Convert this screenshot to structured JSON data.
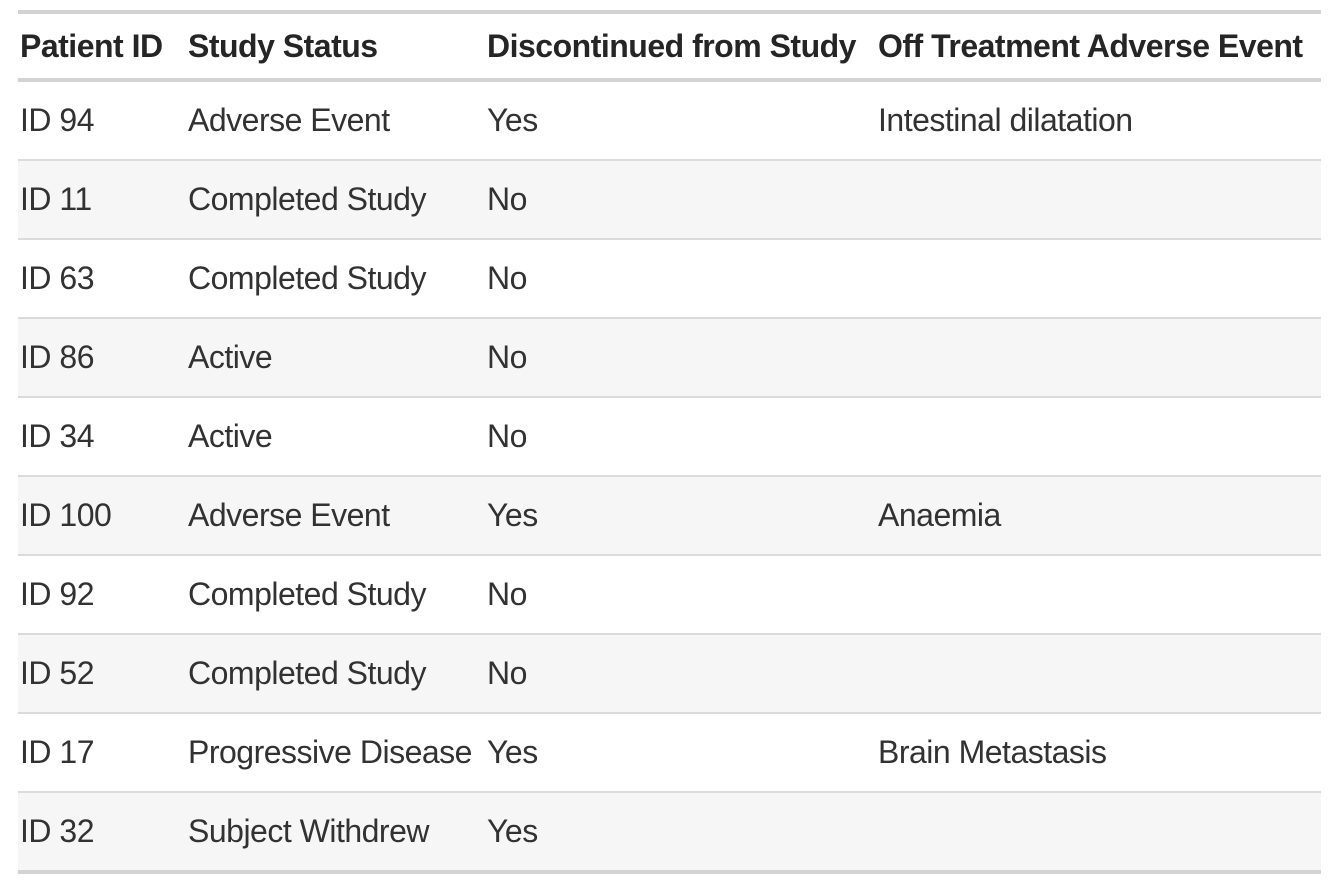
{
  "colors": {
    "border-strong": "#d3d3d3",
    "border-light": "#dbdbdb",
    "row-stripe": "#f6f6f6",
    "row-default": "#ffffff",
    "header-text": "#252525",
    "body-text": "#323232",
    "page-bg": "#ffffff"
  },
  "chart_data": {
    "type": "table",
    "title": "",
    "columns": [
      {
        "key": "patient_id",
        "label": "Patient ID"
      },
      {
        "key": "study_status",
        "label": "Study Status"
      },
      {
        "key": "discontinued",
        "label": "Discontinued from Study"
      },
      {
        "key": "adverse_event",
        "label": "Off Treatment Adverse Event"
      }
    ],
    "rows": [
      {
        "patient_id": "ID 94",
        "study_status": "Adverse Event",
        "discontinued": "Yes",
        "adverse_event": "Intestinal dilatation"
      },
      {
        "patient_id": "ID 11",
        "study_status": "Completed Study",
        "discontinued": "No",
        "adverse_event": ""
      },
      {
        "patient_id": "ID 63",
        "study_status": "Completed Study",
        "discontinued": "No",
        "adverse_event": ""
      },
      {
        "patient_id": "ID 86",
        "study_status": "Active",
        "discontinued": "No",
        "adverse_event": ""
      },
      {
        "patient_id": "ID 34",
        "study_status": "Active",
        "discontinued": "No",
        "adverse_event": ""
      },
      {
        "patient_id": "ID 100",
        "study_status": "Adverse Event",
        "discontinued": "Yes",
        "adverse_event": "Anaemia"
      },
      {
        "patient_id": "ID 92",
        "study_status": "Completed Study",
        "discontinued": "No",
        "adverse_event": ""
      },
      {
        "patient_id": "ID 52",
        "study_status": "Completed Study",
        "discontinued": "No",
        "adverse_event": ""
      },
      {
        "patient_id": "ID 17",
        "study_status": "Progressive Disease",
        "discontinued": "Yes",
        "adverse_event": "Brain Metastasis"
      },
      {
        "patient_id": "ID 32",
        "study_status": "Subject Withdrew",
        "discontinued": "Yes",
        "adverse_event": ""
      }
    ]
  }
}
